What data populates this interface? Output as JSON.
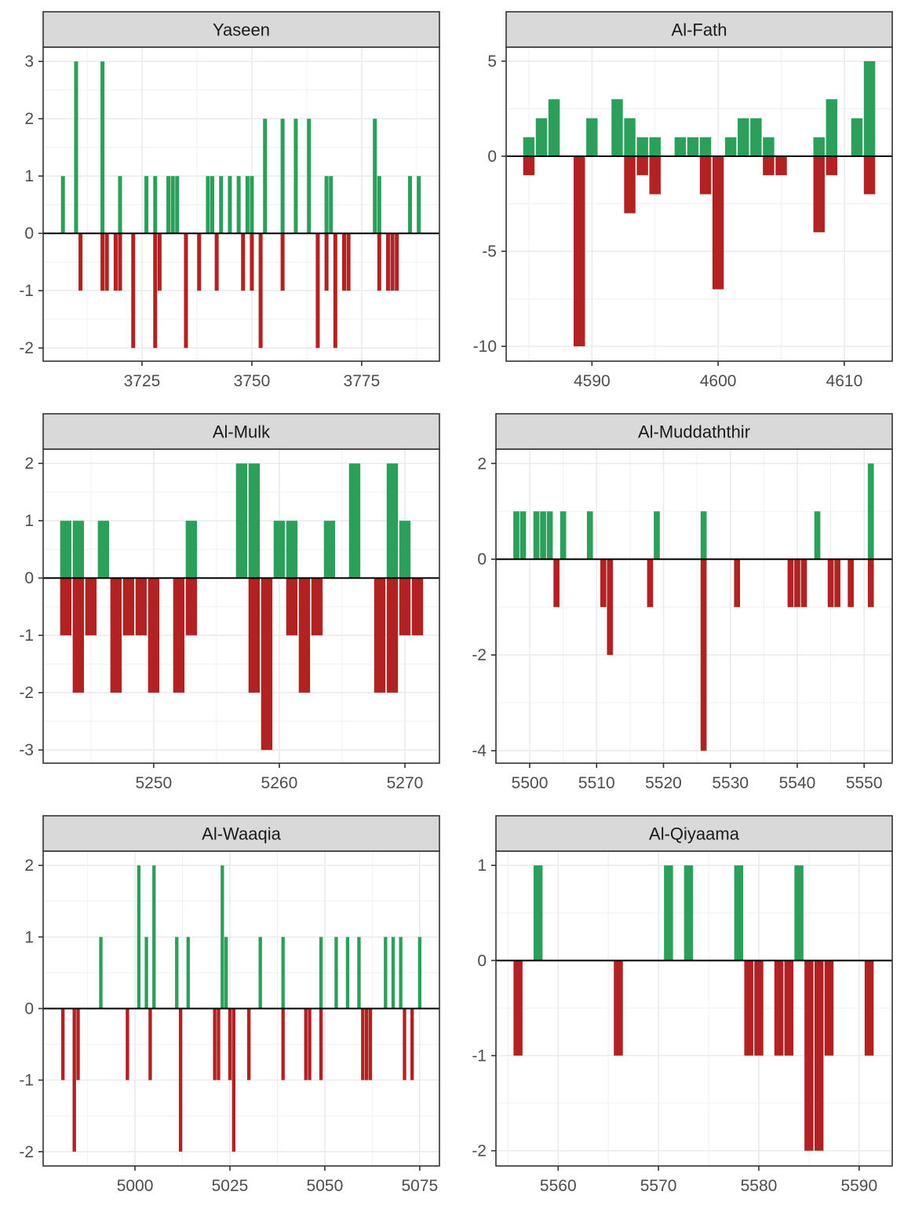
{
  "chart_data": [
    {
      "type": "bar",
      "title": "Yaseen",
      "xlim": [
        3702.5,
        3792.7
      ],
      "ylim": [
        -2.23,
        3.25
      ],
      "xticks": [
        3725,
        3750,
        3775
      ],
      "yticks": [
        -2,
        -1,
        0,
        1,
        2,
        3
      ],
      "grid": true,
      "series": [
        {
          "color": "#2ca05a",
          "points": [
            [
              3707,
              1
            ],
            [
              3710,
              3
            ],
            [
              3716,
              3
            ],
            [
              3720,
              1
            ],
            [
              3726,
              1
            ],
            [
              3728,
              1
            ],
            [
              3731,
              1
            ],
            [
              3732,
              1
            ],
            [
              3733,
              1
            ],
            [
              3740,
              1
            ],
            [
              3741,
              1
            ],
            [
              3743,
              1
            ],
            [
              3745,
              1
            ],
            [
              3747,
              1
            ],
            [
              3749,
              1
            ],
            [
              3750,
              1
            ],
            [
              3753,
              2
            ],
            [
              3757,
              2
            ],
            [
              3760,
              2
            ],
            [
              3763,
              2
            ],
            [
              3767,
              1
            ],
            [
              3768,
              1
            ],
            [
              3778,
              2
            ],
            [
              3779,
              1
            ],
            [
              3786,
              1
            ],
            [
              3788,
              1
            ]
          ]
        },
        {
          "color": "#b22222",
          "points": [
            [
              3711,
              -1
            ],
            [
              3716,
              -1
            ],
            [
              3717,
              -1
            ],
            [
              3719,
              -1
            ],
            [
              3720,
              -1
            ],
            [
              3723,
              -2
            ],
            [
              3728,
              -2
            ],
            [
              3729,
              -1
            ],
            [
              3735,
              -2
            ],
            [
              3738,
              -1
            ],
            [
              3742,
              -1
            ],
            [
              3748,
              -1
            ],
            [
              3750,
              -1
            ],
            [
              3752,
              -2
            ],
            [
              3757,
              -1
            ],
            [
              3765,
              -2
            ],
            [
              3767,
              -1
            ],
            [
              3769,
              -2
            ],
            [
              3771,
              -1
            ],
            [
              3772,
              -1
            ],
            [
              3779,
              -1
            ],
            [
              3781,
              -1
            ],
            [
              3782,
              -1
            ],
            [
              3783,
              -1
            ]
          ]
        }
      ]
    },
    {
      "type": "bar",
      "title": "Al-Fath",
      "xlim": [
        4583.2,
        4613.8
      ],
      "ylim": [
        -10.78,
        5.74
      ],
      "xticks": [
        4590,
        4600,
        4610
      ],
      "yticks": [
        -10,
        -5,
        0,
        5
      ],
      "grid": true,
      "series": [
        {
          "color": "#2ca05a",
          "points": [
            [
              4585,
              1
            ],
            [
              4586,
              2
            ],
            [
              4587,
              3
            ],
            [
              4590,
              2
            ],
            [
              4592,
              3
            ],
            [
              4593,
              2
            ],
            [
              4594,
              1
            ],
            [
              4595,
              1
            ],
            [
              4597,
              1
            ],
            [
              4598,
              1
            ],
            [
              4599,
              1
            ],
            [
              4601,
              1
            ],
            [
              4602,
              2
            ],
            [
              4603,
              2
            ],
            [
              4604,
              1
            ],
            [
              4608,
              1
            ],
            [
              4609,
              3
            ],
            [
              4611,
              2
            ],
            [
              4612,
              5
            ]
          ]
        },
        {
          "color": "#b22222",
          "points": [
            [
              4585,
              -1
            ],
            [
              4589,
              -10
            ],
            [
              4593,
              -3
            ],
            [
              4594,
              -1
            ],
            [
              4595,
              -2
            ],
            [
              4599,
              -2
            ],
            [
              4600,
              -7
            ],
            [
              4604,
              -1
            ],
            [
              4605,
              -1
            ],
            [
              4608,
              -4
            ],
            [
              4609,
              -1
            ],
            [
              4612,
              -2
            ]
          ]
        }
      ]
    },
    {
      "type": "bar",
      "title": "Al-Mulk",
      "xlim": [
        5241.2,
        5272.75
      ],
      "ylim": [
        -3.23,
        2.25
      ],
      "xticks": [
        5250,
        5260,
        5270
      ],
      "yticks": [
        -3,
        -2,
        -1,
        0,
        1,
        2
      ],
      "grid": true,
      "series": [
        {
          "color": "#2ca05a",
          "points": [
            [
              5243,
              1
            ],
            [
              5244,
              1
            ],
            [
              5246,
              1
            ],
            [
              5253,
              1
            ],
            [
              5257,
              2
            ],
            [
              5258,
              2
            ],
            [
              5260,
              1
            ],
            [
              5261,
              1
            ],
            [
              5264,
              1
            ],
            [
              5266,
              2
            ],
            [
              5269,
              2
            ],
            [
              5270,
              1
            ]
          ]
        },
        {
          "color": "#b22222",
          "points": [
            [
              5243,
              -1
            ],
            [
              5244,
              -2
            ],
            [
              5245,
              -1
            ],
            [
              5247,
              -2
            ],
            [
              5248,
              -1
            ],
            [
              5249,
              -1
            ],
            [
              5250,
              -2
            ],
            [
              5252,
              -2
            ],
            [
              5253,
              -1
            ],
            [
              5258,
              -2
            ],
            [
              5259,
              -3
            ],
            [
              5261,
              -1
            ],
            [
              5262,
              -2
            ],
            [
              5263,
              -1
            ],
            [
              5268,
              -2
            ],
            [
              5269,
              -2
            ],
            [
              5270,
              -1
            ],
            [
              5271,
              -1
            ]
          ]
        }
      ]
    },
    {
      "type": "bar",
      "title": "Al-Muddaththir",
      "xlim": [
        5494.95,
        5554.2
      ],
      "ylim": [
        -4.26,
        2.3
      ],
      "xticks": [
        5500,
        5510,
        5520,
        5530,
        5540,
        5550
      ],
      "yticks": [
        -4,
        -2,
        0,
        2
      ],
      "grid": true,
      "series": [
        {
          "color": "#2ca05a",
          "points": [
            [
              5498,
              1
            ],
            [
              5499,
              1
            ],
            [
              5501,
              1
            ],
            [
              5502,
              1
            ],
            [
              5503,
              1
            ],
            [
              5505,
              1
            ],
            [
              5509,
              1
            ],
            [
              5519,
              1
            ],
            [
              5526,
              1
            ],
            [
              5543,
              1
            ],
            [
              5551,
              2
            ]
          ]
        },
        {
          "color": "#b22222",
          "points": [
            [
              5504,
              -1
            ],
            [
              5511,
              -1
            ],
            [
              5512,
              -2
            ],
            [
              5518,
              -1
            ],
            [
              5526,
              -4
            ],
            [
              5531,
              -1
            ],
            [
              5539,
              -1
            ],
            [
              5540,
              -1
            ],
            [
              5541,
              -1
            ],
            [
              5545,
              -1
            ],
            [
              5546,
              -1
            ],
            [
              5548,
              -1
            ],
            [
              5551,
              -1
            ]
          ]
        }
      ]
    },
    {
      "type": "bar",
      "title": "Al-Waaqia",
      "xlim": [
        4975.8,
        5080.2
      ],
      "ylim": [
        -2.2,
        2.2
      ],
      "xticks": [
        5000,
        5025,
        5050,
        5075
      ],
      "yticks": [
        -2,
        -1,
        0,
        1,
        2
      ],
      "grid": true,
      "series": [
        {
          "color": "#2ca05a",
          "points": [
            [
              4991,
              1
            ],
            [
              5001,
              2
            ],
            [
              5003,
              1
            ],
            [
              5005,
              2
            ],
            [
              5011,
              1
            ],
            [
              5014,
              1
            ],
            [
              5023,
              2
            ],
            [
              5024,
              1
            ],
            [
              5033,
              1
            ],
            [
              5039,
              1
            ],
            [
              5049,
              1
            ],
            [
              5053,
              1
            ],
            [
              5056,
              1
            ],
            [
              5059,
              1
            ],
            [
              5066,
              1
            ],
            [
              5068,
              1
            ],
            [
              5070,
              1
            ],
            [
              5075,
              1
            ]
          ]
        },
        {
          "color": "#b22222",
          "points": [
            [
              4981,
              -1
            ],
            [
              4984,
              -2
            ],
            [
              4985,
              -1
            ],
            [
              4998,
              -1
            ],
            [
              5004,
              -1
            ],
            [
              5012,
              -2
            ],
            [
              5021,
              -1
            ],
            [
              5022,
              -1
            ],
            [
              5025,
              -1
            ],
            [
              5026,
              -2
            ],
            [
              5030,
              -1
            ],
            [
              5039,
              -1
            ],
            [
              5045,
              -1
            ],
            [
              5046,
              -1
            ],
            [
              5049,
              -1
            ],
            [
              5060,
              -1
            ],
            [
              5061,
              -1
            ],
            [
              5062,
              -1
            ],
            [
              5071,
              -1
            ],
            [
              5073,
              -1
            ]
          ]
        }
      ]
    },
    {
      "type": "bar",
      "title": "Al-Qiyaama",
      "xlim": [
        5553.8,
        5593.3
      ],
      "ylim": [
        -2.16,
        1.15
      ],
      "xticks": [
        5560,
        5570,
        5580,
        5590
      ],
      "yticks": [
        -2,
        -1,
        0,
        1
      ],
      "grid": true,
      "series": [
        {
          "color": "#2ca05a",
          "points": [
            [
              5558,
              1
            ],
            [
              5571,
              1
            ],
            [
              5573,
              1
            ],
            [
              5578,
              1
            ],
            [
              5584,
              1
            ]
          ]
        },
        {
          "color": "#b22222",
          "points": [
            [
              5556,
              -1
            ],
            [
              5566,
              -1
            ],
            [
              5579,
              -1
            ],
            [
              5580,
              -1
            ],
            [
              5582,
              -1
            ],
            [
              5583,
              -1
            ],
            [
              5585,
              -2
            ],
            [
              5586,
              -2
            ],
            [
              5587,
              -1
            ],
            [
              5591,
              -1
            ]
          ]
        }
      ]
    }
  ]
}
